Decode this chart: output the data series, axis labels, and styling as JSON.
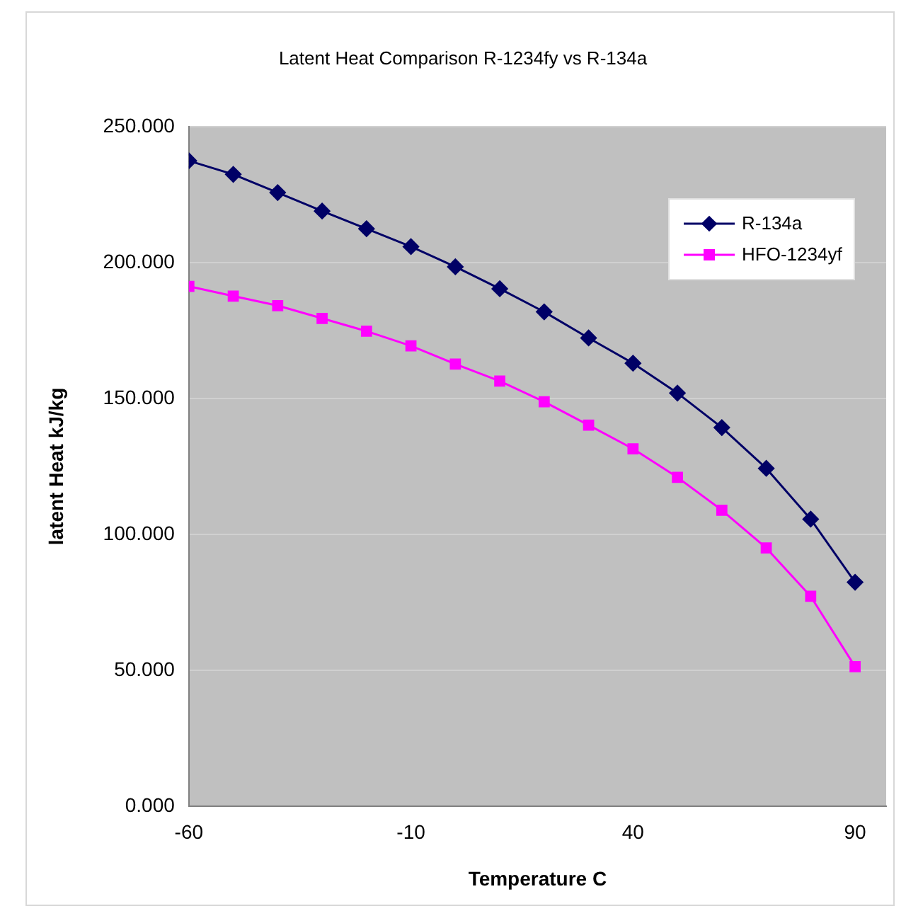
{
  "chart_data": {
    "type": "line",
    "title": "Latent Heat Comparison R-1234fy vs R-134a",
    "xlabel": "Temperature C",
    "ylabel": "latent Heat kJ/kg",
    "x": [
      -60,
      -50,
      -40,
      -30,
      -20,
      -10,
      0,
      10,
      20,
      30,
      40,
      50,
      60,
      70,
      80,
      90
    ],
    "series": [
      {
        "name": "R-134a",
        "color": "#000066",
        "marker": "diamond",
        "values": [
          237.5,
          232.5,
          225.8,
          219.0,
          212.5,
          205.9,
          198.5,
          190.4,
          181.9,
          172.3,
          163.0,
          152.0,
          139.3,
          124.3,
          105.6,
          82.4
        ]
      },
      {
        "name": "HFO-1234yf",
        "color": "#ff00ff",
        "marker": "square",
        "values": [
          191.3,
          187.7,
          184.2,
          179.5,
          174.8,
          169.4,
          162.7,
          156.4,
          148.8,
          140.2,
          131.5,
          121.0,
          108.9,
          95.0,
          77.2,
          51.3
        ]
      }
    ],
    "xlim": [
      -60,
      97
    ],
    "xticks": [
      -60,
      -10,
      40,
      90
    ],
    "ylim": [
      0,
      250
    ],
    "yticks": [
      {
        "value": 0,
        "label": "0.000"
      },
      {
        "value": 50,
        "label": "50.000"
      },
      {
        "value": 100,
        "label": "100.000"
      },
      {
        "value": 150,
        "label": "150.000"
      },
      {
        "value": 200,
        "label": "200.000"
      },
      {
        "value": 250,
        "label": "250.000"
      }
    ],
    "grid": "y",
    "legend": "top right",
    "line_style": "solid"
  }
}
